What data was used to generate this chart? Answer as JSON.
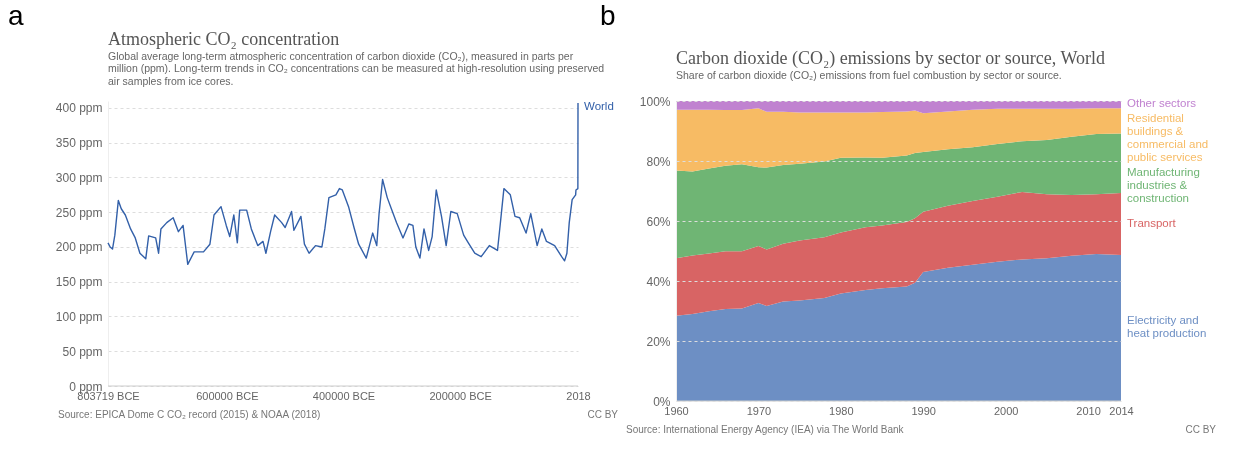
{
  "chart_data": [
    {
      "type": "line",
      "title": "Atmospheric CO₂ concentration",
      "subtitle": "Global average long-term atmospheric concentration of carbon dioxide (CO₂), measured in parts per million (ppm). Long-term trends in CO₂ concentrations can be measured at high-resolution using preserved air samples from ice cores.",
      "annotations": [
        "a",
        "Source: EPICA Dome C CO₂ record (2015) & NOAA (2018)",
        "CC BY"
      ],
      "x": [
        -803719,
        -800000,
        -796000,
        -792000,
        -786000,
        -781000,
        -774000,
        -765000,
        -757000,
        -749000,
        -739000,
        -734000,
        -722000,
        -717000,
        -713000,
        -703000,
        -692000,
        -683000,
        -675000,
        -667000,
        -656000,
        -640000,
        -629000,
        -622000,
        -610000,
        -601000,
        -595000,
        -588000,
        -582000,
        -578000,
        -566000,
        -558000,
        -547000,
        -538000,
        -533000,
        -525000,
        -518000,
        -506000,
        -500000,
        -489000,
        -485000,
        -473000,
        -467000,
        -459000,
        -448000,
        -437000,
        -432000,
        -425000,
        -413000,
        -407000,
        -402000,
        -391000,
        -382000,
        -374000,
        -361000,
        -350000,
        -343000,
        -339000,
        -333000,
        -325000,
        -317000,
        -309000,
        -298000,
        -288000,
        -281000,
        -276000,
        -269000,
        -262000,
        -254000,
        -248000,
        -241000,
        -232000,
        -224000,
        -216000,
        -205000,
        -194000,
        -186000,
        -175000,
        -164000,
        -150000,
        -136000,
        -131000,
        -125000,
        -114000,
        -106000,
        -98000,
        -87000,
        -79000,
        -68000,
        -60000,
        -52000,
        -38000,
        -26000,
        -21000,
        -17000,
        -13000,
        -8000,
        -2000,
        -1500,
        1800,
        2018
      ],
      "series": [
        {
          "name": "World",
          "color": "#3360a9",
          "values": [
            206,
            200,
            197,
            217,
            267,
            255,
            246,
            226,
            213,
            191,
            183,
            216,
            213,
            191,
            226,
            235,
            242,
            222,
            231,
            175,
            193,
            193,
            204,
            246,
            258,
            231,
            215,
            246,
            206,
            253,
            253,
            226,
            202,
            208,
            191,
            222,
            246,
            235,
            228,
            251,
            224,
            244,
            204,
            191,
            202,
            200,
            226,
            271,
            275,
            284,
            282,
            257,
            228,
            204,
            184,
            220,
            202,
            248,
            297,
            271,
            253,
            235,
            213,
            233,
            231,
            200,
            184,
            226,
            195,
            215,
            282,
            244,
            202,
            251,
            248,
            217,
            206,
            191,
            186,
            202,
            195,
            235,
            284,
            275,
            244,
            242,
            220,
            248,
            202,
            226,
            208,
            202,
            186,
            180,
            191,
            235,
            268,
            275,
            282,
            284,
            407
          ]
        }
      ],
      "xlim": [
        -803719,
        2018
      ],
      "xticks": [
        {
          "value": -803719,
          "label": "803719 BCE"
        },
        {
          "value": -600000,
          "label": "600000 BCE"
        },
        {
          "value": -400000,
          "label": "400000 BCE"
        },
        {
          "value": -200000,
          "label": "200000 BCE"
        },
        2018
      ],
      "ylim": [
        0,
        410
      ],
      "yticks": [
        {
          "value": 0,
          "label": "0 ppm"
        },
        {
          "value": 50,
          "label": "50 ppm"
        },
        {
          "value": 100,
          "label": "100 ppm"
        },
        {
          "value": 150,
          "label": "150 ppm"
        },
        {
          "value": 200,
          "label": "200 ppm"
        },
        {
          "value": 250,
          "label": "250 ppm"
        },
        {
          "value": 300,
          "label": "300 ppm"
        },
        {
          "value": 350,
          "label": "350 ppm"
        },
        {
          "value": 400,
          "label": "400 ppm"
        }
      ],
      "grid": "y",
      "line_style": "solid"
    },
    {
      "type": "area",
      "title": "Carbon dioxide (CO₂) emissions by sector or source, World",
      "subtitle": "Share of carbon dioxide (CO₂) emissions from fuel combustion by sector or source.",
      "annotations": [
        "b",
        "Source: International Energy Agency (IEA) via The World Bank",
        "CC BY"
      ],
      "x": [
        1960,
        1962,
        1964,
        1966,
        1968,
        1970,
        1971,
        1973,
        1975,
        1978,
        1980,
        1983,
        1985,
        1988,
        1989,
        1990,
        1993,
        1996,
        1999,
        2002,
        2005,
        2008,
        2011,
        2014
      ],
      "stacked": true,
      "series": [
        {
          "name": "Electricity and heat production",
          "color": "#6d8fc4",
          "values": [
            28.4,
            29.0,
            29.9,
            30.7,
            30.8,
            32.7,
            31.7,
            33.2,
            33.5,
            34.3,
            35.8,
            37.0,
            37.6,
            38.2,
            39.4,
            43.0,
            44.4,
            45.4,
            46.4,
            47.2,
            47.6,
            48.4,
            49.0,
            48.7
          ]
        },
        {
          "name": "Transport",
          "color": "#d86464",
          "values": [
            19.2,
            19.5,
            19.3,
            19.2,
            19.1,
            19.0,
            18.8,
            19.2,
            20.0,
            20.3,
            20.4,
            20.9,
            20.9,
            21.5,
            21.5,
            20.1,
            20.7,
            21.3,
            21.7,
            22.5,
            21.3,
            20.3,
            19.9,
            20.6
          ]
        },
        {
          "name": "Manufacturing industries & construction",
          "color": "#6fb574",
          "values": [
            29.2,
            28.0,
            28.3,
            28.5,
            29.0,
            26.2,
            27.3,
            26.3,
            25.6,
            25.2,
            24.9,
            23.3,
            22.6,
            22.1,
            21.8,
            19.9,
            18.8,
            17.9,
            17.6,
            16.9,
            18.1,
            19.4,
            20.1,
            19.9
          ]
        },
        {
          "name": "Residential buildings & commercial and public services",
          "color": "#f7bb64",
          "values": [
            20.3,
            20.6,
            19.6,
            18.6,
            18.1,
            19.7,
            18.6,
            17.7,
            17.1,
            16.4,
            15.1,
            15.0,
            15.2,
            14.7,
            14.1,
            12.9,
            12.6,
            12.5,
            11.7,
            10.8,
            10.4,
            9.3,
            8.6,
            8.4
          ]
        },
        {
          "name": "Other sectors",
          "color": "#c082d0",
          "values": [
            2.9,
            2.9,
            2.9,
            3.0,
            3.0,
            2.4,
            3.6,
            3.6,
            3.8,
            3.8,
            3.8,
            3.8,
            3.7,
            3.5,
            3.2,
            4.1,
            3.5,
            2.9,
            2.6,
            2.6,
            2.6,
            2.6,
            2.4,
            2.4
          ]
        }
      ],
      "xlim": [
        1960,
        2014
      ],
      "xticks": [
        1960,
        1970,
        1980,
        1990,
        2000,
        2010,
        2014
      ],
      "ylim": [
        0,
        100
      ],
      "yticks": [
        {
          "value": 0,
          "label": "0%"
        },
        {
          "value": 20,
          "label": "20%"
        },
        {
          "value": 40,
          "label": "40%"
        },
        {
          "value": 60,
          "label": "60%"
        },
        {
          "value": 80,
          "label": "80%"
        },
        {
          "value": 100,
          "label": "100%"
        }
      ],
      "grid": "y"
    }
  ]
}
